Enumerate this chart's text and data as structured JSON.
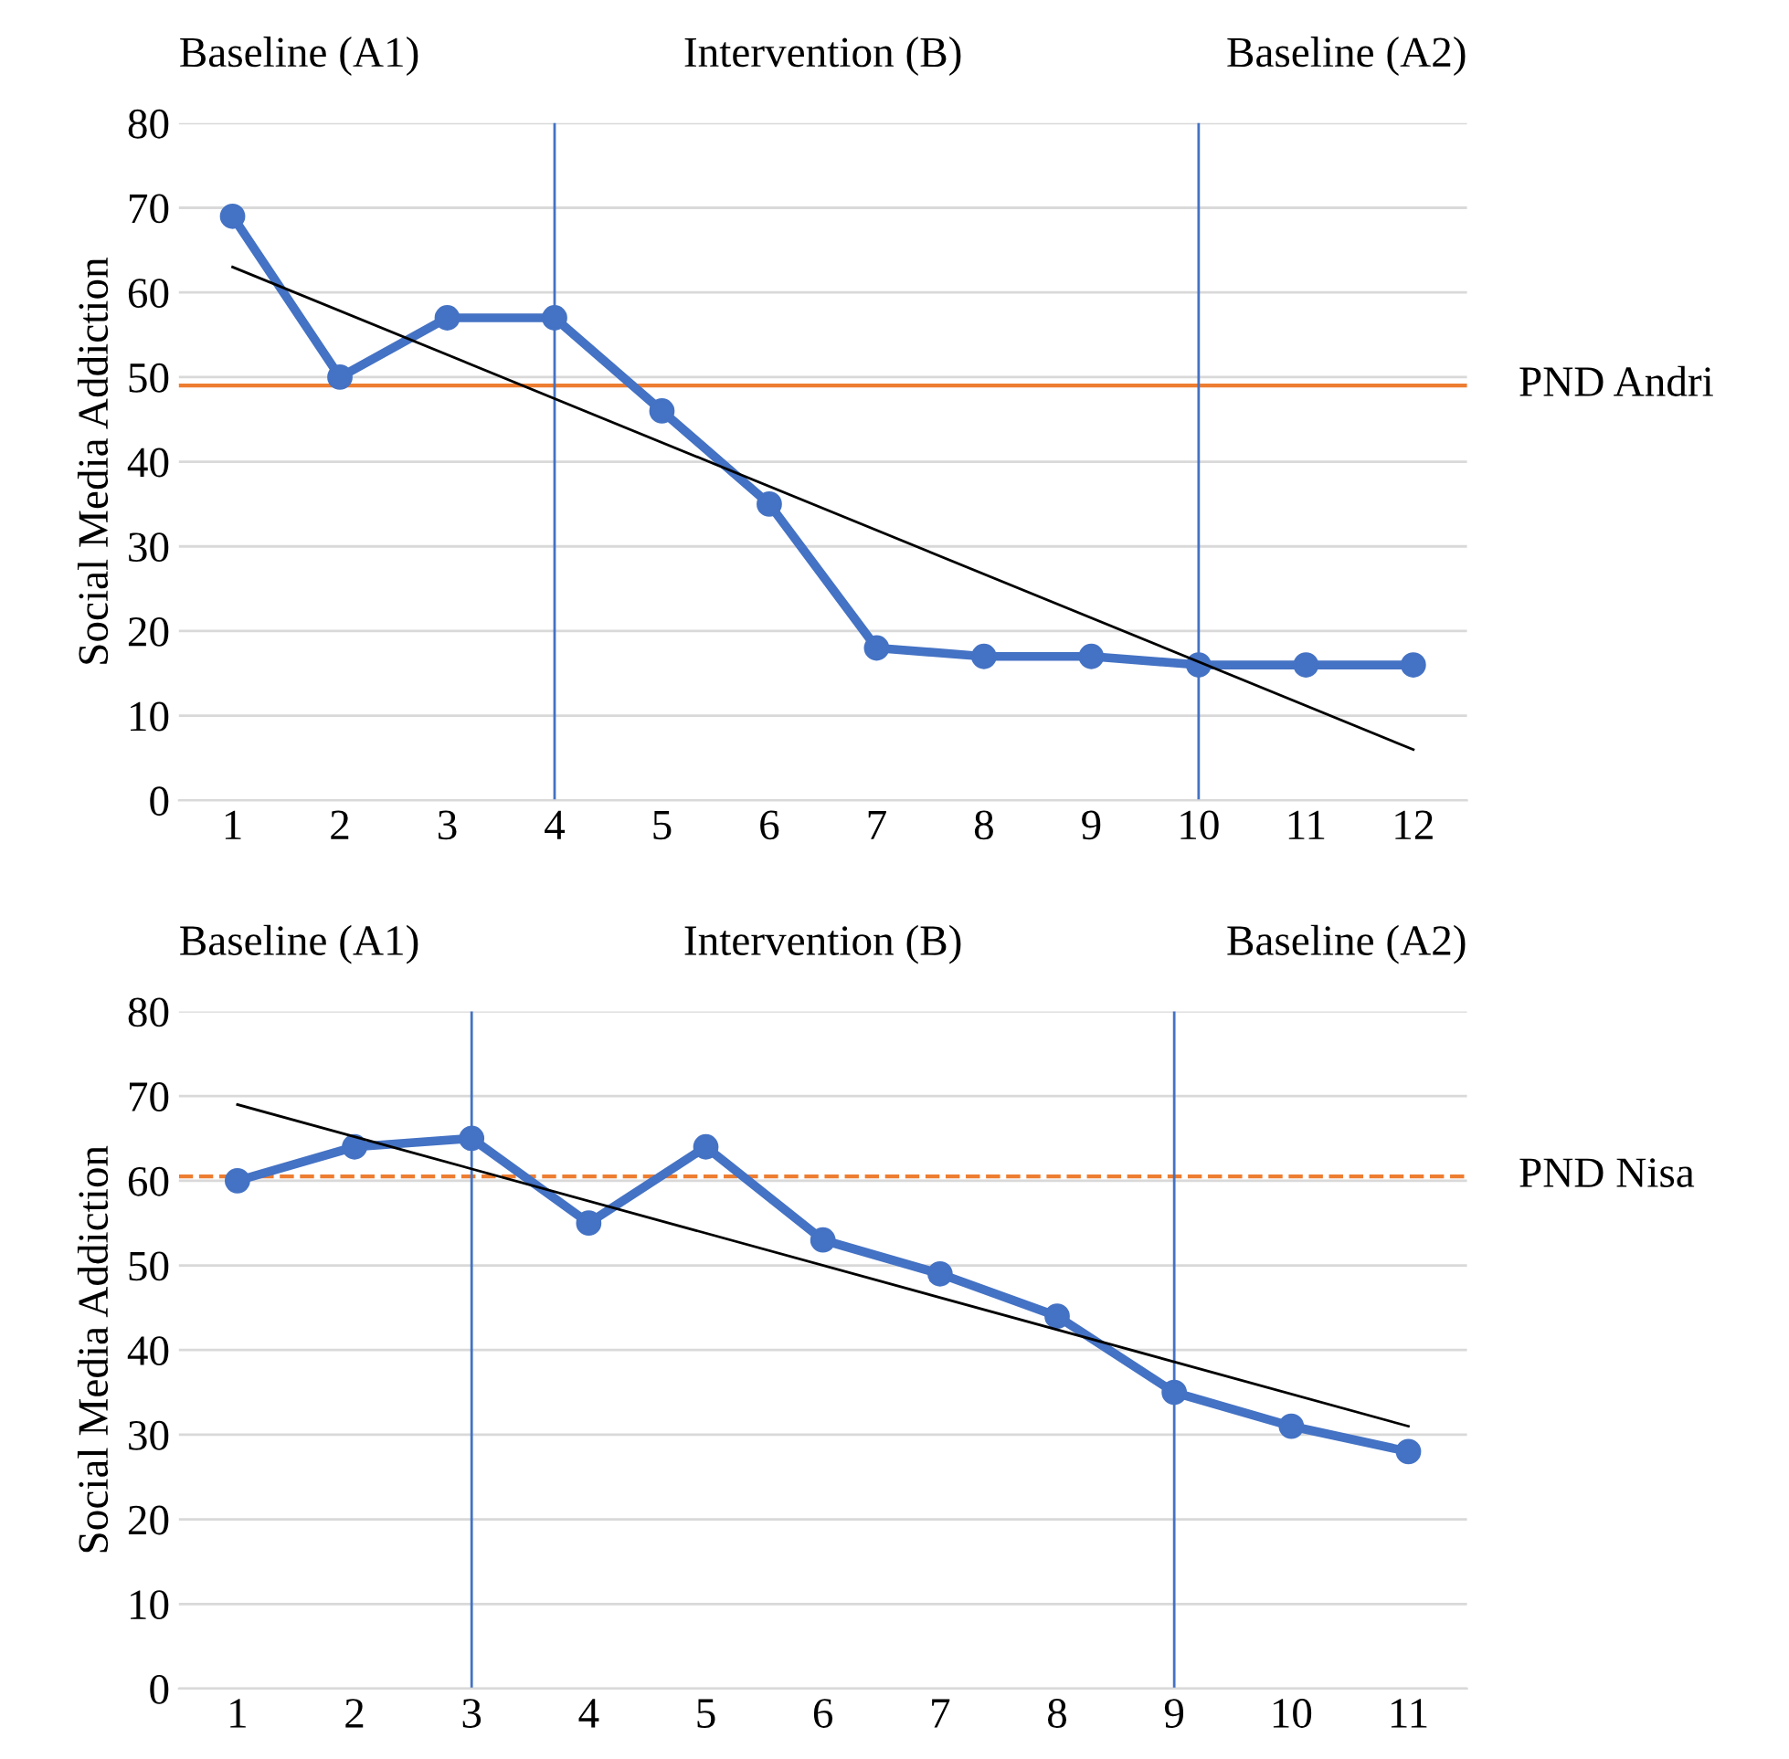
{
  "chart_data": [
    {
      "type": "line",
      "ylabel": "Social Media Addiction",
      "annotations": [
        "Baseline (A1)",
        "Intervention (B)",
        "Baseline (A2)"
      ],
      "x": [
        1,
        2,
        3,
        4,
        5,
        6,
        7,
        8,
        9,
        10,
        11,
        12
      ],
      "xlim": [
        0.5,
        12.5
      ],
      "xticks": [
        1,
        2,
        3,
        4,
        5,
        6,
        7,
        8,
        9,
        10,
        11,
        12
      ],
      "ylim": [
        0,
        80
      ],
      "yticks": [
        0,
        10,
        20,
        30,
        40,
        50,
        60,
        70,
        80
      ],
      "grid": "y",
      "series": [
        {
          "color": "#4472c4",
          "marker": "circle",
          "values": [
            69,
            50,
            57,
            57,
            46,
            35,
            18,
            17,
            17,
            16,
            16,
            16
          ]
        },
        {
          "color": "#000000",
          "marker": "none",
          "x": [
            1,
            12
          ],
          "values": [
            63,
            6
          ]
        }
      ],
      "ref_lines": [
        {
          "axis": "y",
          "value": 49,
          "label": "PND Andri",
          "color": "#ed7d31",
          "line_style": "solid"
        },
        {
          "axis": "x",
          "value": 4,
          "color": "#4472c4",
          "line_style": "solid"
        },
        {
          "axis": "x",
          "value": 10,
          "color": "#4472c4",
          "line_style": "solid"
        }
      ]
    },
    {
      "type": "line",
      "ylabel": "Social Media Addiction",
      "annotations": [
        "Baseline (A1)",
        "Intervention (B)",
        "Baseline (A2)"
      ],
      "x": [
        1,
        2,
        3,
        4,
        5,
        6,
        7,
        8,
        9,
        10,
        11
      ],
      "xlim": [
        0.5,
        11.5
      ],
      "xticks": [
        1,
        2,
        3,
        4,
        5,
        6,
        7,
        8,
        9,
        10,
        11
      ],
      "ylim": [
        0,
        80
      ],
      "yticks": [
        0,
        10,
        20,
        30,
        40,
        50,
        60,
        70,
        80
      ],
      "grid": "y",
      "series": [
        {
          "color": "#4472c4",
          "marker": "circle",
          "values": [
            60,
            64,
            65,
            55,
            64,
            53,
            49,
            44,
            35,
            31,
            28
          ]
        },
        {
          "color": "#000000",
          "marker": "none",
          "x": [
            1,
            11
          ],
          "values": [
            69,
            31
          ]
        }
      ],
      "ref_lines": [
        {
          "axis": "y",
          "value": 60.5,
          "label": "PND Nisa",
          "color": "#ed7d31",
          "line_style": "dashed"
        },
        {
          "axis": "x",
          "value": 3,
          "color": "#4472c4",
          "line_style": "solid"
        },
        {
          "axis": "x",
          "value": 9,
          "color": "#4472c4",
          "line_style": "solid"
        }
      ]
    }
  ]
}
